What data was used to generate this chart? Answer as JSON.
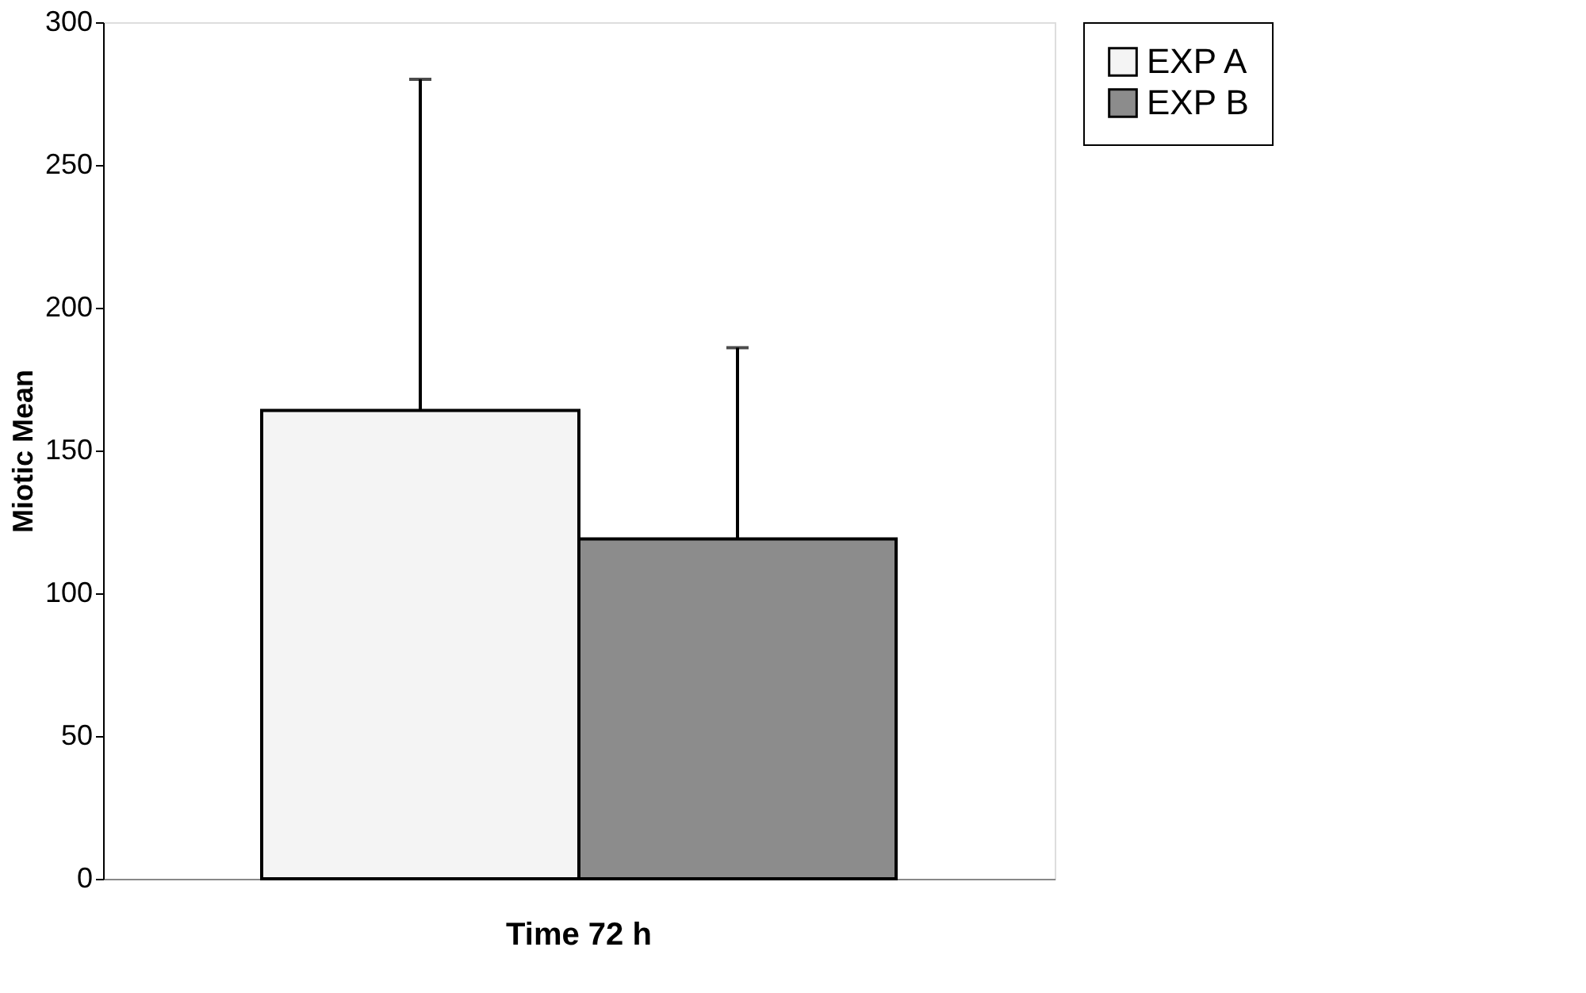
{
  "chart_data": {
    "type": "bar",
    "ylabel": "Miotic Mean",
    "categories": [
      "Time 72 h"
    ],
    "series": [
      {
        "name": "EXP A",
        "color": "#f4f4f4",
        "values": [
          164
        ],
        "errors": [
          [
            164,
            280
          ]
        ]
      },
      {
        "name": "EXP B",
        "color": "#8c8c8c",
        "values": [
          119
        ],
        "errors": [
          [
            119,
            186
          ]
        ]
      }
    ],
    "ylim": [
      0,
      300
    ],
    "yticks": [
      0,
      50,
      100,
      150,
      200,
      250,
      300
    ],
    "grid": false,
    "legend": "right"
  }
}
